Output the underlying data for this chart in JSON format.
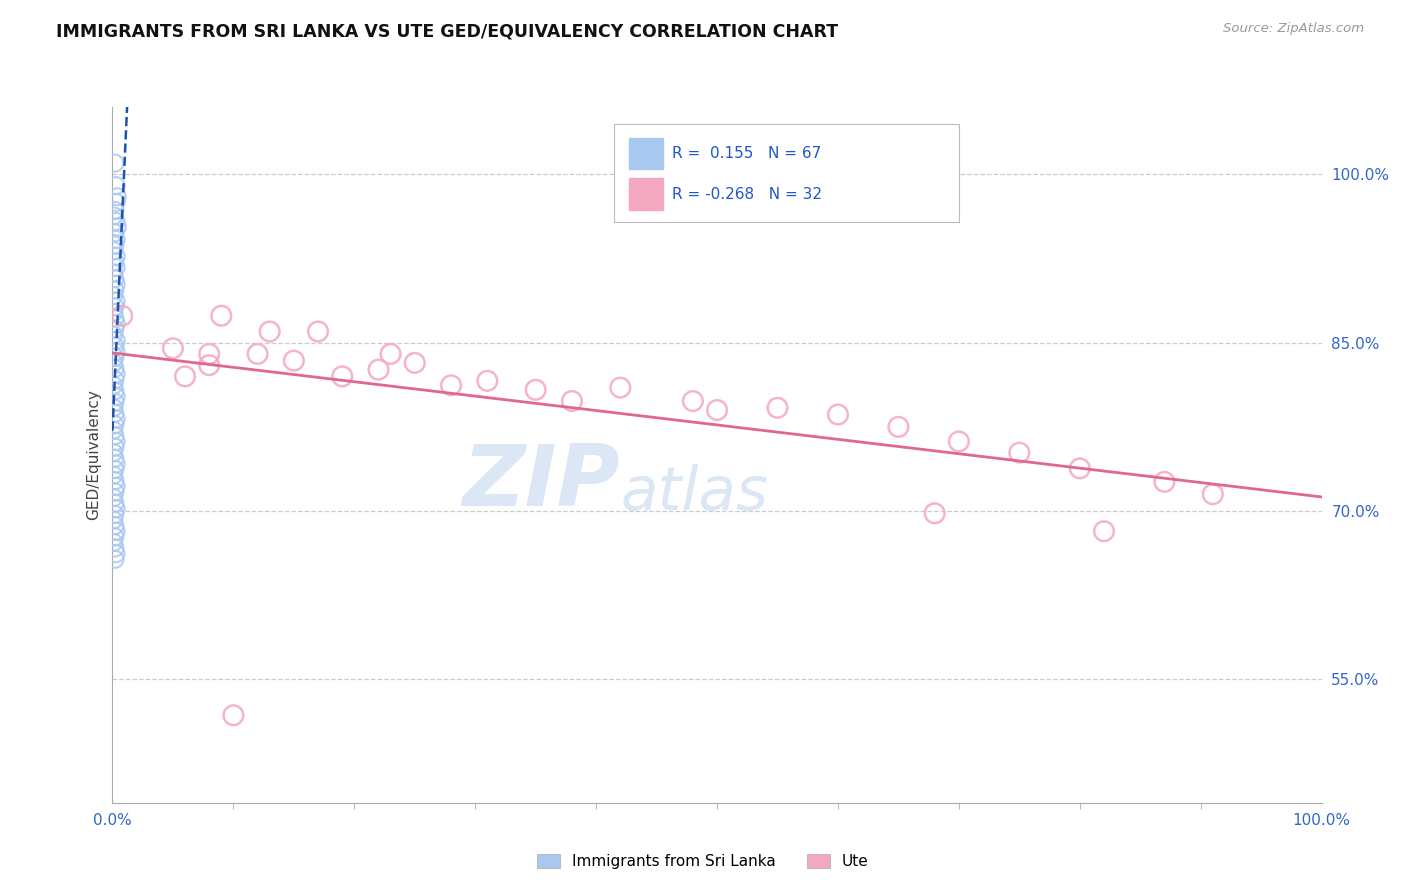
{
  "title": "IMMIGRANTS FROM SRI LANKA VS UTE GED/EQUIVALENCY CORRELATION CHART",
  "source": "Source: ZipAtlas.com",
  "ylabel": "GED/Equivalency",
  "right_ytick_vals": [
    1.0,
    0.85,
    0.7,
    0.55
  ],
  "right_ytick_labels": [
    "100.0%",
    "85.0%",
    "70.0%",
    "55.0%"
  ],
  "xlim": [
    0.0,
    1.0
  ],
  "ylim": [
    0.44,
    1.06
  ],
  "blue_scatter_color": "#a8c8f0",
  "pink_scatter_color": "#f4a8c0",
  "blue_line_color": "#2050b0",
  "pink_line_color": "#e06888",
  "sri_lanka_x": [
    0.002,
    0.003,
    0.004,
    0.003,
    0.002,
    0.001,
    0.003,
    0.004,
    0.002,
    0.003,
    0.002,
    0.001,
    0.003,
    0.002,
    0.003,
    0.001,
    0.002,
    0.003,
    0.002,
    0.001,
    0.003,
    0.002,
    0.001,
    0.002,
    0.003,
    0.002,
    0.001,
    0.003,
    0.002,
    0.003,
    0.002,
    0.001,
    0.002,
    0.003,
    0.002,
    0.001,
    0.002,
    0.003,
    0.002,
    0.001,
    0.002,
    0.003,
    0.002,
    0.001,
    0.002,
    0.003,
    0.002,
    0.001,
    0.002,
    0.003,
    0.002,
    0.001,
    0.002,
    0.003,
    0.002,
    0.001,
    0.002,
    0.003,
    0.002,
    0.001,
    0.002,
    0.003,
    0.002,
    0.001,
    0.002,
    0.003,
    0.002
  ],
  "sri_lanka_y": [
    1.01,
    0.99,
    0.98,
    0.975,
    0.968,
    0.963,
    0.958,
    0.953,
    0.948,
    0.942,
    0.937,
    0.932,
    0.927,
    0.922,
    0.917,
    0.912,
    0.907,
    0.902,
    0.897,
    0.892,
    0.887,
    0.882,
    0.877,
    0.872,
    0.867,
    0.862,
    0.857,
    0.852,
    0.847,
    0.842,
    0.837,
    0.832,
    0.827,
    0.822,
    0.817,
    0.812,
    0.807,
    0.802,
    0.797,
    0.792,
    0.787,
    0.782,
    0.777,
    0.772,
    0.767,
    0.762,
    0.757,
    0.752,
    0.747,
    0.742,
    0.737,
    0.732,
    0.727,
    0.722,
    0.717,
    0.712,
    0.707,
    0.702,
    0.697,
    0.692,
    0.687,
    0.682,
    0.677,
    0.672,
    0.667,
    0.662,
    0.657
  ],
  "ute_x": [
    0.008,
    0.09,
    0.13,
    0.08,
    0.17,
    0.23,
    0.08,
    0.06,
    0.05,
    0.12,
    0.19,
    0.25,
    0.31,
    0.28,
    0.22,
    0.38,
    0.42,
    0.48,
    0.55,
    0.6,
    0.65,
    0.7,
    0.75,
    0.8,
    0.87,
    0.91,
    0.15,
    0.35,
    0.5,
    0.68,
    0.82,
    0.1
  ],
  "ute_y": [
    0.874,
    0.874,
    0.86,
    0.84,
    0.86,
    0.84,
    0.83,
    0.82,
    0.845,
    0.84,
    0.82,
    0.832,
    0.816,
    0.812,
    0.826,
    0.798,
    0.81,
    0.798,
    0.792,
    0.786,
    0.775,
    0.762,
    0.752,
    0.738,
    0.726,
    0.715,
    0.834,
    0.808,
    0.79,
    0.698,
    0.682,
    0.518
  ],
  "legend_blue_text": "R =  0.155   N = 67",
  "legend_pink_text": "R = -0.268   N = 32",
  "bottom_legend": [
    "Immigrants from Sri Lanka",
    "Ute"
  ],
  "watermark_zip": "ZIP",
  "watermark_atlas": "atlas"
}
